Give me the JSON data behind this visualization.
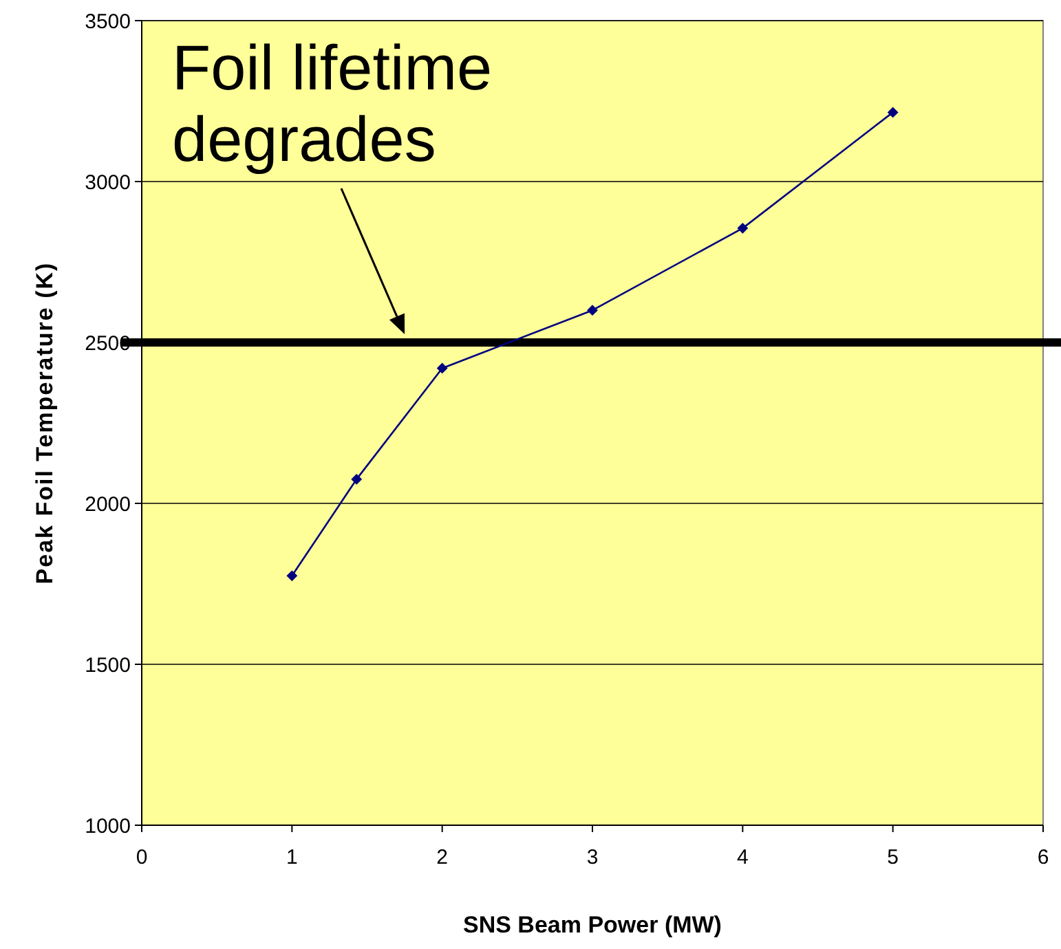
{
  "chart_data": {
    "type": "line",
    "xlabel": "SNS Beam Power (MW)",
    "ylabel": "Peak Foil Temperature (K)",
    "x": [
      1,
      1.43,
      2,
      3,
      4,
      5
    ],
    "series": [
      {
        "color": "#000080",
        "values": [
          1775,
          2075,
          2420,
          2600,
          2855,
          3215
        ]
      }
    ],
    "xlim": [
      0,
      6
    ],
    "xticks": [
      0,
      1,
      2,
      3,
      4,
      5,
      6
    ],
    "ylim": [
      1000,
      3500
    ],
    "yticks": [
      1000,
      1500,
      2000,
      2500,
      3000,
      3500
    ],
    "grid": "y",
    "marker": "diamond",
    "line_style": "solid",
    "ref_lines": [
      {
        "axis": "y",
        "value": 2500,
        "color": "#000000",
        "line_style": "solid"
      }
    ],
    "annotations": [
      {
        "text": "Foil lifetime degrades",
        "x": 1.75,
        "y": 2500
      }
    ]
  }
}
